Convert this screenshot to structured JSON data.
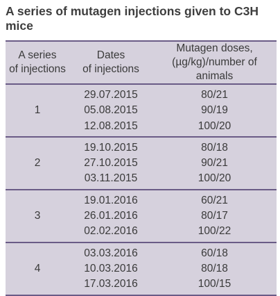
{
  "title": "A series of mutagen injections given to C3H mice",
  "columns": [
    {
      "line1": "A series",
      "line2": "of injections"
    },
    {
      "line1": "Dates",
      "line2": "of injections"
    },
    {
      "line1": "Mutagen doses,",
      "line2": "(µg/kg)/number of animals"
    }
  ],
  "rows": [
    {
      "series": "1",
      "dates": [
        "29.07.2015",
        "05.08.2015",
        "12.08.2015"
      ],
      "doses": [
        "80/21",
        "90/19",
        "100/20"
      ]
    },
    {
      "series": "2",
      "dates": [
        "19.10.2015",
        "27.10.2015",
        "03.11.2015"
      ],
      "doses": [
        "80/18",
        "90/21",
        "100/20"
      ]
    },
    {
      "series": "3",
      "dates": [
        "19.01.2016",
        "26.01.2016",
        "02.02.2016"
      ],
      "doses": [
        "60/21",
        "80/17",
        "100/22"
      ]
    },
    {
      "series": "4",
      "dates": [
        "03.03.2016",
        "10.03.2016",
        "17.03.2016"
      ],
      "doses": [
        "60/18",
        "80/18",
        "100/15"
      ]
    }
  ]
}
